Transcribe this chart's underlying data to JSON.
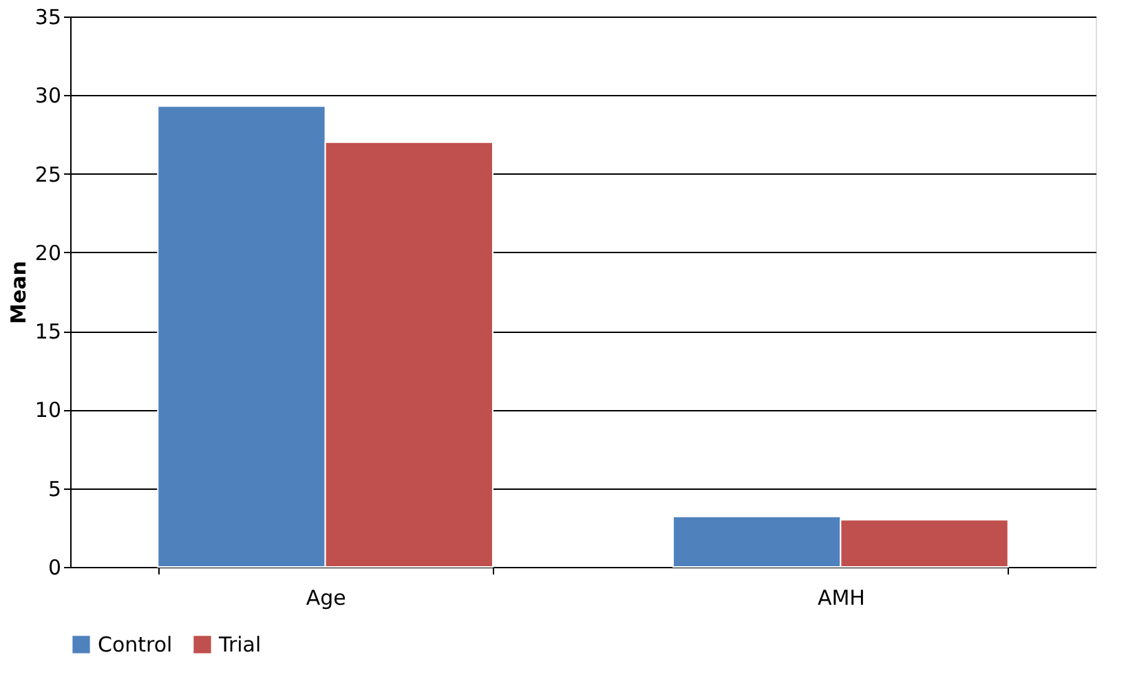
{
  "chart_data": {
    "type": "bar",
    "ylabel": "Mean",
    "categories": [
      "Age",
      "AMH"
    ],
    "series": [
      {
        "name": "Control",
        "color": "#4f81bd",
        "values": [
          29.3,
          3.2
        ]
      },
      {
        "name": "Trial",
        "color": "#c0504d",
        "values": [
          27.0,
          3.0
        ]
      }
    ],
    "ylim": [
      0,
      35
    ],
    "yticks": [
      0,
      5,
      10,
      15,
      20,
      25,
      30,
      35
    ],
    "grid": "y",
    "legend": "bottom"
  }
}
